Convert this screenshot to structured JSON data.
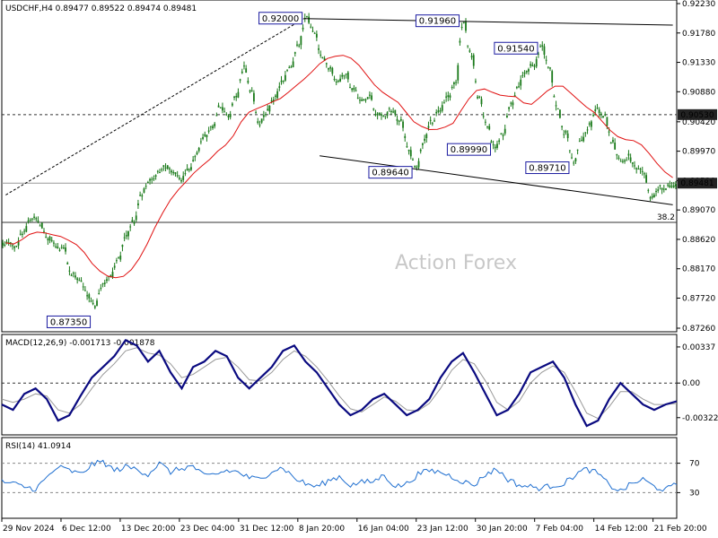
{
  "chart_data": {
    "type": "candlestick",
    "symbol_header": "USDCHF,H4",
    "ohlc_header": [
      "0.89477",
      "0.89522",
      "0.89474",
      "0.89481"
    ],
    "watermark": "Action Forex",
    "price_axis_ticks": [
      "0.92230",
      "0.91780",
      "0.91330",
      "0.90880",
      "0.90420",
      "0.89970",
      "0.89520",
      "0.89070",
      "0.88620",
      "0.88170",
      "0.87720",
      "0.87260"
    ],
    "price_range": [
      0.8726,
      0.9223
    ],
    "price_badges": [
      {
        "label": "0.90530",
        "value": 0.9053,
        "style": "dark"
      },
      {
        "label": "0.89481",
        "value": 0.89481,
        "style": "dark"
      }
    ],
    "horizontal_levels": [
      {
        "value": 0.9053,
        "style": "dashed"
      },
      {
        "value": 0.89481,
        "style": "solid-gray"
      },
      {
        "value": 0.8888,
        "style": "solid-dark"
      }
    ],
    "fib_label": "38.2",
    "x_labels": [
      "29 Nov 2024",
      "6 Dec 12:00",
      "13 Dec 20:00",
      "23 Dec 04:00",
      "31 Dec 12:00",
      "8 Jan 20:00",
      "16 Jan 04:00",
      "23 Jan 12:00",
      "30 Jan 20:00",
      "7 Feb 04:00",
      "14 Feb 12:00",
      "21 Feb 20:00"
    ],
    "price_anchors": [
      [
        0.8855,
        1
      ],
      [
        0.8872,
        2
      ],
      [
        0.8889,
        3
      ],
      [
        0.8885,
        4
      ],
      [
        0.8864,
        5
      ],
      [
        0.8855,
        6
      ],
      [
        0.8845,
        7
      ],
      [
        0.8808,
        8
      ],
      [
        0.8795,
        9
      ],
      [
        0.8775,
        10
      ],
      [
        0.8762,
        11
      ],
      [
        0.879,
        12
      ],
      [
        0.8808,
        13
      ],
      [
        0.883,
        14
      ],
      [
        0.887,
        15
      ],
      [
        0.8895,
        16
      ],
      [
        0.893,
        17
      ],
      [
        0.895,
        18
      ],
      [
        0.896,
        19
      ],
      [
        0.898,
        20
      ],
      [
        0.8965,
        21
      ],
      [
        0.895,
        22
      ],
      [
        0.897,
        23
      ],
      [
        0.9,
        24
      ],
      [
        0.902,
        25
      ],
      [
        0.903,
        26
      ],
      [
        0.906,
        27
      ],
      [
        0.905,
        28
      ],
      [
        0.908,
        29
      ],
      [
        0.912,
        30
      ],
      [
        0.909,
        31
      ],
      [
        0.9045,
        32
      ],
      [
        0.906,
        33
      ],
      [
        0.908,
        34
      ],
      [
        0.9105,
        35
      ],
      [
        0.912,
        36
      ],
      [
        0.916,
        37
      ],
      [
        0.92,
        38
      ],
      [
        0.918,
        39
      ],
      [
        0.914,
        40
      ],
      [
        0.912,
        41
      ],
      [
        0.91,
        42
      ],
      [
        0.912,
        43
      ],
      [
        0.909,
        44
      ],
      [
        0.907,
        45
      ],
      [
        0.908,
        46
      ],
      [
        0.906,
        47
      ],
      [
        0.905,
        48
      ],
      [
        0.9065,
        49
      ],
      [
        0.904,
        50
      ],
      [
        0.9,
        51
      ],
      [
        0.897,
        52
      ],
      [
        0.902,
        53
      ],
      [
        0.9045,
        54
      ],
      [
        0.906,
        55
      ],
      [
        0.908,
        56
      ],
      [
        0.91,
        57
      ],
      [
        0.9196,
        58
      ],
      [
        0.915,
        59
      ],
      [
        0.908,
        60
      ],
      [
        0.904,
        61
      ],
      [
        0.9,
        62
      ],
      [
        0.903,
        63
      ],
      [
        0.907,
        64
      ],
      [
        0.91,
        65
      ],
      [
        0.912,
        66
      ],
      [
        0.913,
        67
      ],
      [
        0.9154,
        68
      ],
      [
        0.912,
        69
      ],
      [
        0.906,
        70
      ],
      [
        0.902,
        71
      ],
      [
        0.898,
        72
      ],
      [
        0.901,
        73
      ],
      [
        0.904,
        74
      ],
      [
        0.906,
        75
      ],
      [
        0.905,
        76
      ],
      [
        0.901,
        77
      ],
      [
        0.898,
        78
      ],
      [
        0.899,
        79
      ],
      [
        0.897,
        80
      ],
      [
        0.8955,
        81
      ],
      [
        0.893,
        82
      ],
      [
        0.894,
        83
      ]
    ],
    "trendlines": [
      {
        "from": [
          0.893,
          0
        ],
        "to": [
          0.92,
          38
        ],
        "style": "dotted"
      },
      {
        "from": [
          0.92,
          38
        ],
        "to": [
          0.919,
          85
        ],
        "style": "solid"
      },
      {
        "from": [
          0.899,
          40
        ],
        "to": [
          0.8915,
          85
        ],
        "style": "solid"
      }
    ],
    "pivot_labels": [
      {
        "label": "0.92000",
        "value": 0.92,
        "bar": 38,
        "side": "left"
      },
      {
        "label": "0.91960",
        "value": 0.9196,
        "bar": 58,
        "side": "left"
      },
      {
        "label": "0.91540",
        "value": 0.9154,
        "bar": 68,
        "side": "left"
      },
      {
        "label": "0.89990",
        "value": 0.8999,
        "bar": 62,
        "side": "left"
      },
      {
        "label": "0.89640",
        "value": 0.8964,
        "bar": 52,
        "side": "left"
      },
      {
        "label": "0.89710",
        "value": 0.8971,
        "bar": 72,
        "side": "left"
      },
      {
        "label": "0.87350",
        "value": 0.8735,
        "bar": 11,
        "side": "left"
      }
    ],
    "macd": {
      "header": "MACD(12,26,9) -0.001713 -0.001878",
      "axis_ticks": [
        "0.00337",
        "0.00",
        "-0.003227"
      ],
      "range": [
        -0.0045,
        0.0042
      ],
      "macd_anchors": [
        -0.002,
        -0.0025,
        -0.001,
        -0.0005,
        -0.0015,
        -0.0035,
        -0.003,
        -0.0012,
        0.0005,
        0.0015,
        0.0025,
        0.004,
        0.0035,
        0.002,
        0.003,
        0.001,
        -0.0005,
        0.0015,
        0.002,
        0.003,
        0.0025,
        0.0005,
        -0.0005,
        0.0005,
        0.0015,
        0.003,
        0.0035,
        0.002,
        0.001,
        -0.0005,
        -0.002,
        -0.003,
        -0.0025,
        -0.0015,
        -0.001,
        -0.002,
        -0.003,
        -0.0025,
        -0.0015,
        0.0005,
        0.002,
        0.0028,
        0.001,
        -0.001,
        -0.003,
        -0.0025,
        -0.001,
        0.001,
        0.0015,
        0.002,
        0.0005,
        -0.002,
        -0.004,
        -0.0035,
        -0.0015,
        0.0,
        -0.001,
        -0.002,
        -0.0025,
        -0.002,
        -0.0017
      ],
      "signal_anchors": [
        -0.0015,
        -0.0018,
        -0.0015,
        -0.001,
        -0.0012,
        -0.0025,
        -0.0028,
        -0.002,
        -0.0005,
        0.0008,
        0.0018,
        0.003,
        0.0033,
        0.0028,
        0.0026,
        0.0018,
        0.0005,
        0.0008,
        0.0015,
        0.0022,
        0.0024,
        0.0015,
        0.0003,
        0.0002,
        0.001,
        0.0022,
        0.003,
        0.0025,
        0.0015,
        0.0002,
        -0.0012,
        -0.0024,
        -0.0027,
        -0.002,
        -0.0013,
        -0.0017,
        -0.0025,
        -0.0026,
        -0.0019,
        -0.0005,
        0.0012,
        0.0022,
        0.0018,
        0.0002,
        -0.0018,
        -0.0025,
        -0.0017,
        0.0,
        0.001,
        0.0016,
        0.001,
        -0.0008,
        -0.0028,
        -0.0033,
        -0.0022,
        -0.0008,
        -0.0008,
        -0.0015,
        -0.002,
        -0.002,
        -0.0019
      ]
    },
    "rsi": {
      "header": "RSI(14) 41.0914",
      "axis_ticks": [
        "70",
        "30"
      ],
      "range": [
        0,
        100
      ],
      "anchors": [
        45,
        42,
        38,
        35,
        50,
        65,
        60,
        55,
        68,
        72,
        60,
        65,
        62,
        55,
        70,
        58,
        63,
        66,
        52,
        55,
        60,
        58,
        50,
        48,
        60,
        64,
        50,
        42,
        38,
        46,
        52,
        40,
        44,
        45,
        54,
        38,
        42,
        55,
        60,
        58,
        52,
        45,
        40,
        55,
        62,
        48,
        40,
        38,
        36,
        40,
        42,
        55,
        62,
        56,
        40,
        32,
        42,
        48,
        38,
        34,
        41
      ]
    }
  }
}
